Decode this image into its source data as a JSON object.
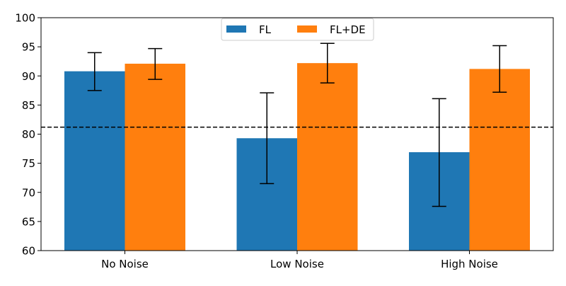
{
  "chart_data": {
    "type": "bar",
    "categories": [
      "No Noise",
      "Low Noise",
      "High Noise"
    ],
    "series": [
      {
        "name": "FL",
        "color": "#1f77b4",
        "values": [
          90.8,
          79.3,
          76.9
        ],
        "error_low": [
          87.5,
          71.5,
          67.6
        ],
        "error_high": [
          94.0,
          87.1,
          86.1
        ]
      },
      {
        "name": "FL+DE",
        "color": "#ff7f0e",
        "values": [
          92.1,
          92.2,
          91.2
        ],
        "error_low": [
          89.4,
          88.8,
          87.2
        ],
        "error_high": [
          94.7,
          95.6,
          95.2
        ]
      }
    ],
    "reference_line": 81.2,
    "ylim": [
      60,
      100
    ],
    "yticks": [
      60,
      65,
      70,
      75,
      80,
      85,
      90,
      95,
      100
    ],
    "title": "",
    "xlabel": "",
    "ylabel": "",
    "grid": false,
    "legend_position": "top-center"
  }
}
